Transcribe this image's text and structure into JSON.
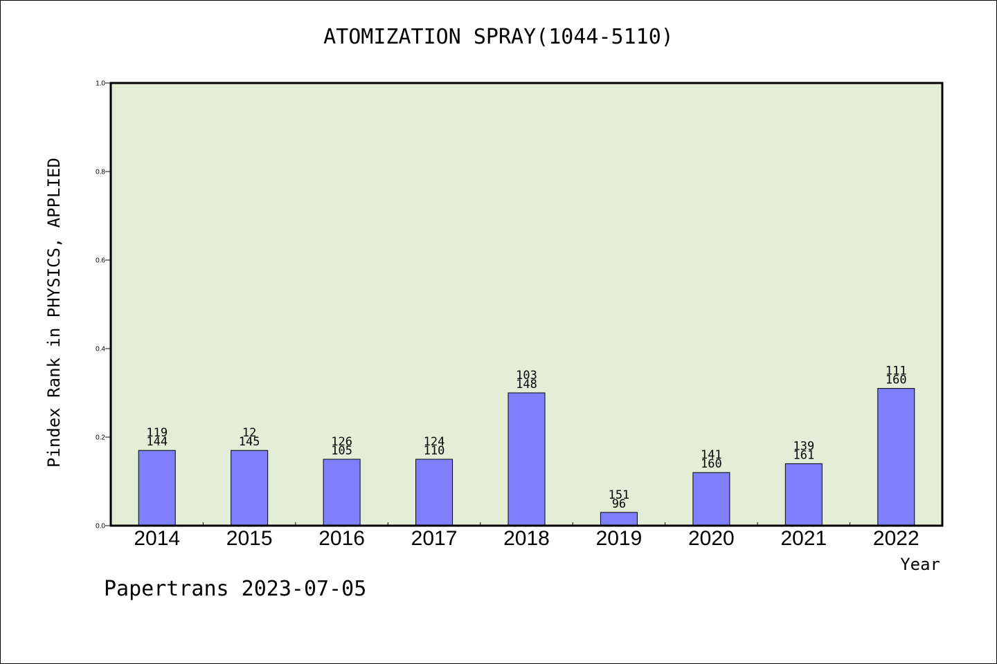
{
  "chart_data": {
    "type": "bar",
    "title": "ATOMIZATION SPRAY(1044-5110)",
    "xlabel": "Year",
    "ylabel": "Pindex Rank in PHYSICS, APPLIED",
    "categories": [
      "2014",
      "2015",
      "2016",
      "2017",
      "2018",
      "2019",
      "2020",
      "2021",
      "2022"
    ],
    "values": [
      0.17,
      0.17,
      0.15,
      0.15,
      0.3,
      0.03,
      0.12,
      0.14,
      0.31
    ],
    "bar_labels": [
      [
        "119",
        "144"
      ],
      [
        "12",
        "145"
      ],
      [
        "126",
        "105"
      ],
      [
        "124",
        "110"
      ],
      [
        "103",
        "148"
      ],
      [
        "151",
        "96"
      ],
      [
        "141",
        "160"
      ],
      [
        "139",
        "161"
      ],
      [
        "111",
        "160"
      ]
    ],
    "ylim": [
      0,
      1.0
    ],
    "yticks": [
      "0.0",
      "0.2",
      "0.4",
      "0.6",
      "0.8",
      "1.0"
    ],
    "grid": false,
    "colors": {
      "plot_background": "#e2efd6",
      "bar_fill": "#8080ff",
      "bar_edge": "#000000"
    }
  },
  "footer": "Papertrans 2023-07-05"
}
